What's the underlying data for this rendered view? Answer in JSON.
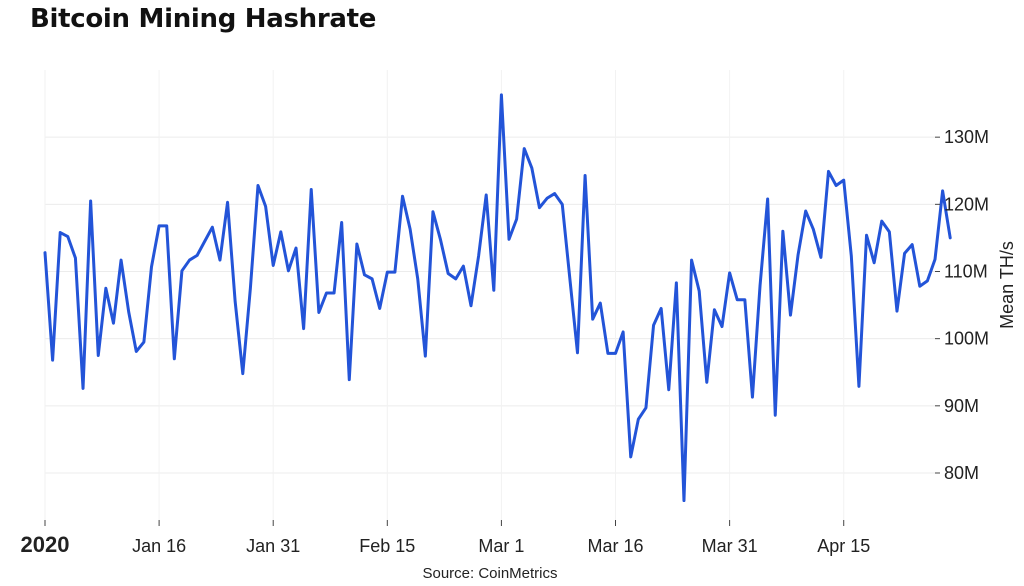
{
  "chart_data": {
    "type": "line",
    "title": "Bitcoin Mining Hashrate",
    "xlabel": "",
    "ylabel": "Mean TH/s",
    "source": "Source: CoinMetrics",
    "x_start": "2020-01-01",
    "x_end": "2020-04-27",
    "x_ticks": [
      {
        "date": "2020-01-01",
        "label": "2020",
        "bold": true
      },
      {
        "date": "2020-01-16",
        "label": "Jan 16",
        "bold": false
      },
      {
        "date": "2020-01-31",
        "label": "Jan 31",
        "bold": false
      },
      {
        "date": "2020-02-15",
        "label": "Feb 15",
        "bold": false
      },
      {
        "date": "2020-03-01",
        "label": "Mar 1",
        "bold": false
      },
      {
        "date": "2020-03-16",
        "label": "Mar 16",
        "bold": false
      },
      {
        "date": "2020-03-31",
        "label": "Mar 31",
        "bold": false
      },
      {
        "date": "2020-04-15",
        "label": "Apr 15",
        "bold": false
      }
    ],
    "ylim": [
      73,
      140
    ],
    "y_ticks": [
      {
        "value": 80,
        "label": "80M"
      },
      {
        "value": 90,
        "label": "90M"
      },
      {
        "value": 100,
        "label": "100M"
      },
      {
        "value": 110,
        "label": "110M"
      },
      {
        "value": 120,
        "label": "120M"
      },
      {
        "value": 130,
        "label": "130M"
      }
    ],
    "grid": true,
    "line_color": "#2354d8",
    "series": [
      {
        "values": [
          112.8,
          96.8,
          115.8,
          115.2,
          112.0,
          92.6,
          120.5,
          97.5,
          107.5,
          102.3,
          111.7,
          104.0,
          98.1,
          99.5,
          110.7,
          116.8,
          116.8,
          97.0,
          110.1,
          111.7,
          112.4,
          114.5,
          116.6,
          111.7,
          120.3,
          105.5,
          94.8,
          107.5,
          122.8,
          119.7,
          110.9,
          115.9,
          110.1,
          113.5,
          101.5,
          122.2,
          103.9,
          106.8,
          106.8,
          117.3,
          93.9,
          114.1,
          109.5,
          108.9,
          104.5,
          109.9,
          109.9,
          121.2,
          116.3,
          108.9,
          97.4,
          118.9,
          114.7,
          109.7,
          108.9,
          110.8,
          104.9,
          112.3,
          121.4,
          107.2,
          136.3,
          114.8,
          117.8,
          128.3,
          125.4,
          119.5,
          120.9,
          121.6,
          120.0,
          108.9,
          97.9,
          124.3,
          102.9,
          105.3,
          97.8,
          97.8,
          101.0,
          82.4,
          88.0,
          89.7,
          102.0,
          104.5,
          92.4,
          108.3,
          75.9,
          111.7,
          107.1,
          93.5,
          104.3,
          101.8,
          109.8,
          105.8,
          105.8,
          91.3,
          107.9,
          120.8,
          88.6,
          116.0,
          103.5,
          112.5,
          119.0,
          116.3,
          112.1,
          124.9,
          122.8,
          123.6,
          112.3,
          92.9,
          115.4,
          111.3,
          117.5,
          115.9,
          104.1,
          112.7,
          114.0,
          107.8,
          108.6,
          111.8,
          122.0,
          115.0
        ]
      }
    ]
  }
}
